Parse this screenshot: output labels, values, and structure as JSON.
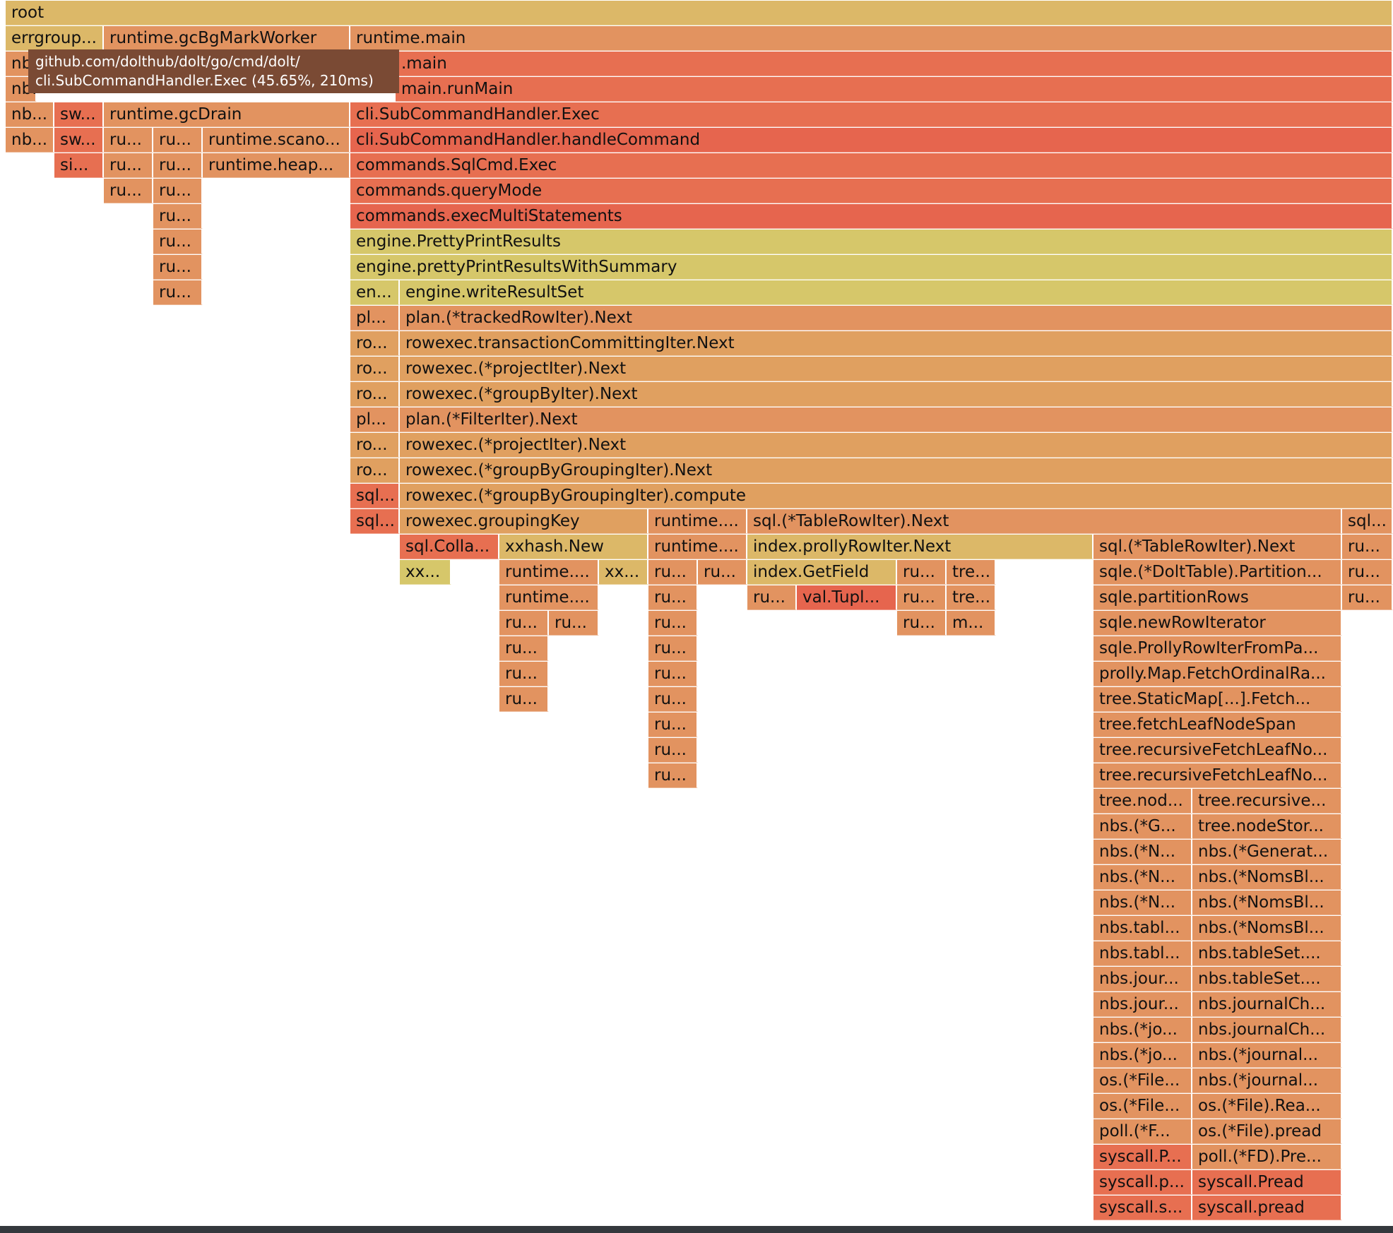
{
  "tooltip": {
    "line1": "github.com/dolthub/dolt/go/cmd/dolt/",
    "line2": "cli.SubCommandHandler.Exec (45.65%, 210ms)"
  },
  "colors": {
    "yellow_gold": "#dcb868",
    "light_orange": "#e0a060",
    "orange": "#e29360",
    "red_orange": "#e76f51",
    "deep_red": "#e6654e",
    "olive_yellow": "#d6c76a",
    "text": "#111111",
    "tooltip_bg": "#7a4a34"
  },
  "frames": [
    {
      "label": "root",
      "color": "#dcb868"
    },
    {
      "label": "errgroup...",
      "color": "#dcb868"
    },
    {
      "label": "runtime.gcBgMarkWorker",
      "color": "#e29360"
    },
    {
      "label": "runtime.main",
      "color": "#e29360"
    },
    {
      "label": "nb...",
      "color": "#e29360"
    },
    {
      "label": ".main",
      "color": "#e76f51"
    },
    {
      "label": "nb...",
      "color": "#e29360"
    },
    {
      "label": "main.runMain",
      "color": "#e76f51"
    },
    {
      "label": "nb...",
      "color": "#e29360"
    },
    {
      "label": "sw...",
      "color": "#e76f51"
    },
    {
      "label": "runtime.gcDrain",
      "color": "#e29360"
    },
    {
      "label": "cli.SubCommandHandler.Exec",
      "color": "#e76f51"
    },
    {
      "label": "nb...",
      "color": "#e29360"
    },
    {
      "label": "sw...",
      "color": "#e76f51"
    },
    {
      "label": "ru...",
      "color": "#e29360"
    },
    {
      "label": "ru...",
      "color": "#e29360"
    },
    {
      "label": "runtime.scano...",
      "color": "#e29360"
    },
    {
      "label": "cli.SubCommandHandler.handleCommand",
      "color": "#e6654e"
    },
    {
      "label": "si...",
      "color": "#e76f51"
    },
    {
      "label": "ru...",
      "color": "#e29360"
    },
    {
      "label": "ru...",
      "color": "#e29360"
    },
    {
      "label": "runtime.heap...",
      "color": "#e29360"
    },
    {
      "label": "commands.SqlCmd.Exec",
      "color": "#e76f51"
    },
    {
      "label": "ru...",
      "color": "#e29360"
    },
    {
      "label": "ru...",
      "color": "#e29360"
    },
    {
      "label": "commands.queryMode",
      "color": "#e76f51"
    },
    {
      "label": "ru...",
      "color": "#e29360"
    },
    {
      "label": "commands.execMultiStatements",
      "color": "#e6654e"
    },
    {
      "label": "ru...",
      "color": "#e29360"
    },
    {
      "label": "engine.PrettyPrintResults",
      "color": "#d6c76a"
    },
    {
      "label": "ru...",
      "color": "#e29360"
    },
    {
      "label": "engine.prettyPrintResultsWithSummary",
      "color": "#d6c76a"
    },
    {
      "label": "ru...",
      "color": "#e29360"
    },
    {
      "label": "en...",
      "color": "#d6c76a"
    },
    {
      "label": "engine.writeResultSet",
      "color": "#d6c76a"
    },
    {
      "label": "pl...",
      "color": "#e29360"
    },
    {
      "label": "plan.(*trackedRowIter).Next",
      "color": "#e29360"
    },
    {
      "label": "ro...",
      "color": "#e0a060"
    },
    {
      "label": "rowexec.transactionCommittingIter.Next",
      "color": "#e0a060"
    },
    {
      "label": "ro...",
      "color": "#e0a060"
    },
    {
      "label": "rowexec.(*projectIter).Next",
      "color": "#e0a060"
    },
    {
      "label": "ro...",
      "color": "#e0a060"
    },
    {
      "label": "rowexec.(*groupByIter).Next",
      "color": "#e0a060"
    },
    {
      "label": "pl...",
      "color": "#e29360"
    },
    {
      "label": "plan.(*FilterIter).Next",
      "color": "#e29360"
    },
    {
      "label": "ro...",
      "color": "#e0a060"
    },
    {
      "label": "rowexec.(*projectIter).Next",
      "color": "#e0a060"
    },
    {
      "label": "ro...",
      "color": "#e0a060"
    },
    {
      "label": "rowexec.(*groupByGroupingIter).Next",
      "color": "#e0a060"
    },
    {
      "label": "sql...",
      "color": "#e76f51"
    },
    {
      "label": "rowexec.(*groupByGroupingIter).compute",
      "color": "#e0a060"
    },
    {
      "label": "sql...",
      "color": "#e76f51"
    },
    {
      "label": "rowexec.groupingKey",
      "color": "#e0a060"
    },
    {
      "label": "runtime....",
      "color": "#e29360"
    },
    {
      "label": "sql.(*TableRowIter).Next",
      "color": "#e29360"
    },
    {
      "label": "sql...",
      "color": "#e29360"
    },
    {
      "label": "sql.Colla...",
      "color": "#e76f51"
    },
    {
      "label": "xxhash.New",
      "color": "#dcb868"
    },
    {
      "label": "runtime....",
      "color": "#e29360"
    },
    {
      "label": "index.prollyRowIter.Next",
      "color": "#dcb868"
    },
    {
      "label": "sql.(*TableRowIter).Next",
      "color": "#e29360"
    },
    {
      "label": "ru...",
      "color": "#e29360"
    },
    {
      "label": "xx...",
      "color": "#d6c76a"
    },
    {
      "label": "runtime....",
      "color": "#e29360"
    },
    {
      "label": "xx...",
      "color": "#dcb868"
    },
    {
      "label": "ru...",
      "color": "#e29360"
    },
    {
      "label": "ru...",
      "color": "#e29360"
    },
    {
      "label": "index.GetField",
      "color": "#dcb868"
    },
    {
      "label": "ru...",
      "color": "#e29360"
    },
    {
      "label": "tre...",
      "color": "#e29360"
    },
    {
      "label": "sqle.(*DoltTable).Partition...",
      "color": "#e29360"
    },
    {
      "label": "ru...",
      "color": "#e29360"
    },
    {
      "label": "runtime....",
      "color": "#e29360"
    },
    {
      "label": "ru...",
      "color": "#e29360"
    },
    {
      "label": "ru...",
      "color": "#e29360"
    },
    {
      "label": "val.Tupl...",
      "color": "#e6654e"
    },
    {
      "label": "ru...",
      "color": "#e29360"
    },
    {
      "label": "tre...",
      "color": "#e29360"
    },
    {
      "label": "sqle.partitionRows",
      "color": "#e29360"
    },
    {
      "label": "ru...",
      "color": "#e29360"
    },
    {
      "label": "ru...",
      "color": "#e29360"
    },
    {
      "label": "ru...",
      "color": "#e29360"
    },
    {
      "label": "ru...",
      "color": "#e29360"
    },
    {
      "label": "ru...",
      "color": "#e29360"
    },
    {
      "label": "m...",
      "color": "#e29360"
    },
    {
      "label": "sqle.newRowIterator",
      "color": "#e29360"
    },
    {
      "label": "ru...",
      "color": "#e29360"
    },
    {
      "label": "ru...",
      "color": "#e29360"
    },
    {
      "label": "sqle.ProllyRowIterFromPa...",
      "color": "#e29360"
    },
    {
      "label": "ru...",
      "color": "#e29360"
    },
    {
      "label": "ru...",
      "color": "#e29360"
    },
    {
      "label": "prolly.Map.FetchOrdinalRa...",
      "color": "#e29360"
    },
    {
      "label": "ru...",
      "color": "#e29360"
    },
    {
      "label": "ru...",
      "color": "#e29360"
    },
    {
      "label": "tree.StaticMap[...].Fetch...",
      "color": "#e29360"
    },
    {
      "label": "ru...",
      "color": "#e29360"
    },
    {
      "label": "tree.fetchLeafNodeSpan",
      "color": "#e29360"
    },
    {
      "label": "ru...",
      "color": "#e29360"
    },
    {
      "label": "tree.recursiveFetchLeafNo...",
      "color": "#e29360"
    },
    {
      "label": "ru...",
      "color": "#e29360"
    },
    {
      "label": "tree.recursiveFetchLeafNo...",
      "color": "#e29360"
    },
    {
      "label": "tree.nod...",
      "color": "#e29360"
    },
    {
      "label": "tree.recursive...",
      "color": "#e29360"
    },
    {
      "label": "nbs.(*G...",
      "color": "#e29360"
    },
    {
      "label": "tree.nodeStor...",
      "color": "#e29360"
    },
    {
      "label": "nbs.(*N...",
      "color": "#e29360"
    },
    {
      "label": "nbs.(*Generat...",
      "color": "#e29360"
    },
    {
      "label": "nbs.(*N...",
      "color": "#e29360"
    },
    {
      "label": "nbs.(*NomsBl...",
      "color": "#e29360"
    },
    {
      "label": "nbs.(*N...",
      "color": "#e29360"
    },
    {
      "label": "nbs.(*NomsBl...",
      "color": "#e29360"
    },
    {
      "label": "nbs.tabl...",
      "color": "#e29360"
    },
    {
      "label": "nbs.(*NomsBl...",
      "color": "#e29360"
    },
    {
      "label": "nbs.tabl...",
      "color": "#e29360"
    },
    {
      "label": "nbs.tableSet....",
      "color": "#e29360"
    },
    {
      "label": "nbs.jour...",
      "color": "#e29360"
    },
    {
      "label": "nbs.tableSet....",
      "color": "#e29360"
    },
    {
      "label": "nbs.jour...",
      "color": "#e29360"
    },
    {
      "label": "nbs.journalCh...",
      "color": "#e29360"
    },
    {
      "label": "nbs.(*jo...",
      "color": "#e29360"
    },
    {
      "label": "nbs.journalCh...",
      "color": "#e29360"
    },
    {
      "label": "nbs.(*jo...",
      "color": "#e29360"
    },
    {
      "label": "nbs.(*journal...",
      "color": "#e29360"
    },
    {
      "label": "os.(*File...",
      "color": "#e29360"
    },
    {
      "label": "nbs.(*journal...",
      "color": "#e29360"
    },
    {
      "label": "os.(*File...",
      "color": "#e29360"
    },
    {
      "label": "os.(*File).Rea...",
      "color": "#e29360"
    },
    {
      "label": "poll.(*F...",
      "color": "#e29360"
    },
    {
      "label": "os.(*File).pread",
      "color": "#e29360"
    },
    {
      "label": "syscall.P...",
      "color": "#e76f51"
    },
    {
      "label": "poll.(*FD).Pre...",
      "color": "#e29360"
    },
    {
      "label": "syscall.p...",
      "color": "#e76f51"
    },
    {
      "label": "syscall.Pread",
      "color": "#e76f51"
    },
    {
      "label": "syscall.s...",
      "color": "#e76f51"
    },
    {
      "label": "syscall.pread",
      "color": "#e76f51"
    }
  ]
}
